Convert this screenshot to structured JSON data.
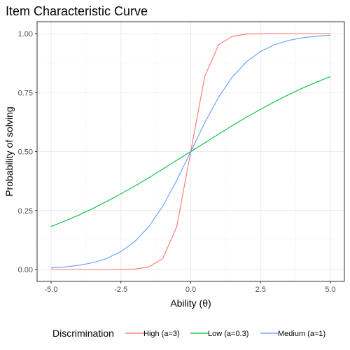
{
  "chart_data": {
    "type": "line",
    "title": "Item Characteristic Curve",
    "xlabel": "Ability (θ)",
    "ylabel": "Probability of solving",
    "xlim": [
      -5,
      5
    ],
    "ylim": [
      0,
      1
    ],
    "x_ticks": [
      -5,
      -2.5,
      0,
      2.5,
      5
    ],
    "x_tick_labels": [
      "-5.0",
      "-2.5",
      "0.0",
      "2.5",
      "5.0"
    ],
    "y_ticks": [
      0,
      0.25,
      0.5,
      0.75,
      1
    ],
    "y_tick_labels": [
      "0.00",
      "0.25",
      "0.50",
      "0.75",
      "1.00"
    ],
    "grid": true,
    "legend": {
      "title": "Discrimination",
      "position": "bottom"
    },
    "x": [
      -5,
      -4.5,
      -4,
      -3.5,
      -3,
      -2.5,
      -2,
      -1.5,
      -1,
      -0.5,
      0,
      0.5,
      1,
      1.5,
      2,
      2.5,
      3,
      3.5,
      4,
      4.5,
      5
    ],
    "series": [
      {
        "name": "High (a=3)",
        "color": "#f8766d",
        "values": [
          0.0,
          0.0,
          0.0,
          0.0,
          0.0,
          0.001,
          0.002,
          0.011,
          0.047,
          0.182,
          0.5,
          0.818,
          0.953,
          0.989,
          0.998,
          0.999,
          1.0,
          1.0,
          1.0,
          1.0,
          1.0
        ]
      },
      {
        "name": "Low (a=0.3)",
        "color": "#00ba38",
        "values": [
          0.182,
          0.206,
          0.231,
          0.259,
          0.289,
          0.321,
          0.354,
          0.389,
          0.426,
          0.463,
          0.5,
          0.537,
          0.574,
          0.611,
          0.646,
          0.679,
          0.711,
          0.741,
          0.769,
          0.794,
          0.818
        ]
      },
      {
        "name": "Medium (a=1)",
        "color": "#619cff",
        "values": [
          0.007,
          0.011,
          0.018,
          0.029,
          0.047,
          0.076,
          0.119,
          0.182,
          0.269,
          0.378,
          0.5,
          0.622,
          0.731,
          0.818,
          0.881,
          0.924,
          0.953,
          0.971,
          0.982,
          0.989,
          0.993
        ]
      }
    ]
  }
}
